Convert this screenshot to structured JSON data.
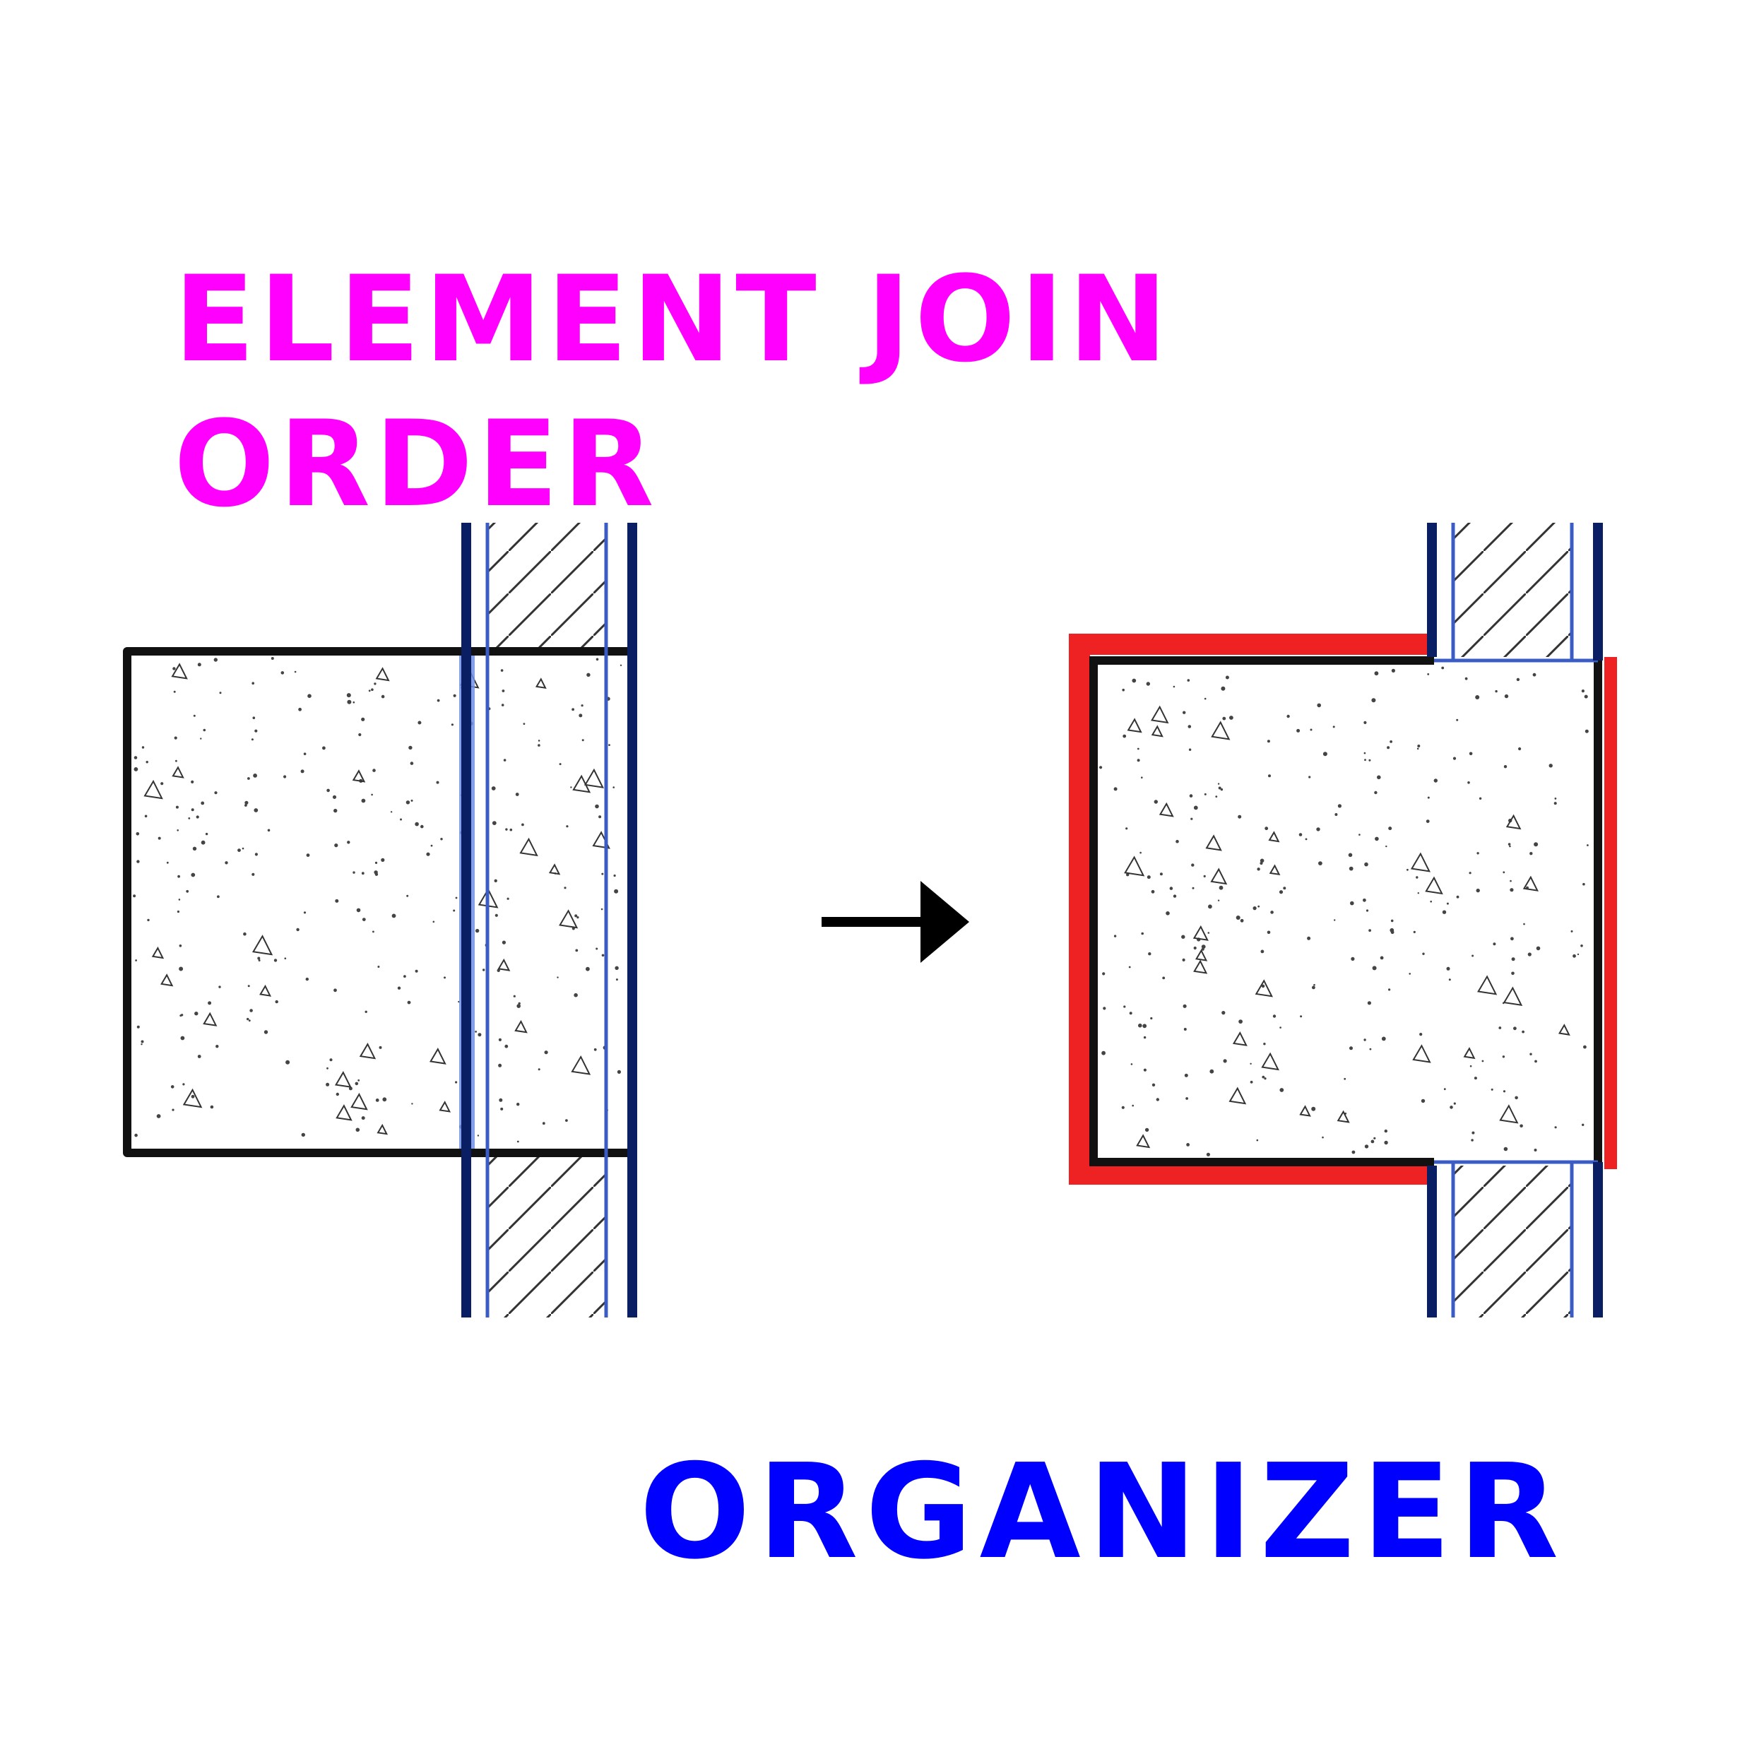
{
  "title": {
    "line1": "ELEMENT JOIN",
    "line2": "ORDER"
  },
  "subtitle": "ORGANIZER",
  "colors": {
    "title": "#ff00ff",
    "subtitle": "#0000ff",
    "wall_outline": "#0a1f63",
    "wall_inner_line": "#3b5cc4",
    "highlight_overlap": "#6f8fe6",
    "column_outline": "#111111",
    "join_highlight": "#ee2222",
    "arrow": "#000000"
  },
  "icons": {
    "arrow": "arrow-right-icon"
  }
}
